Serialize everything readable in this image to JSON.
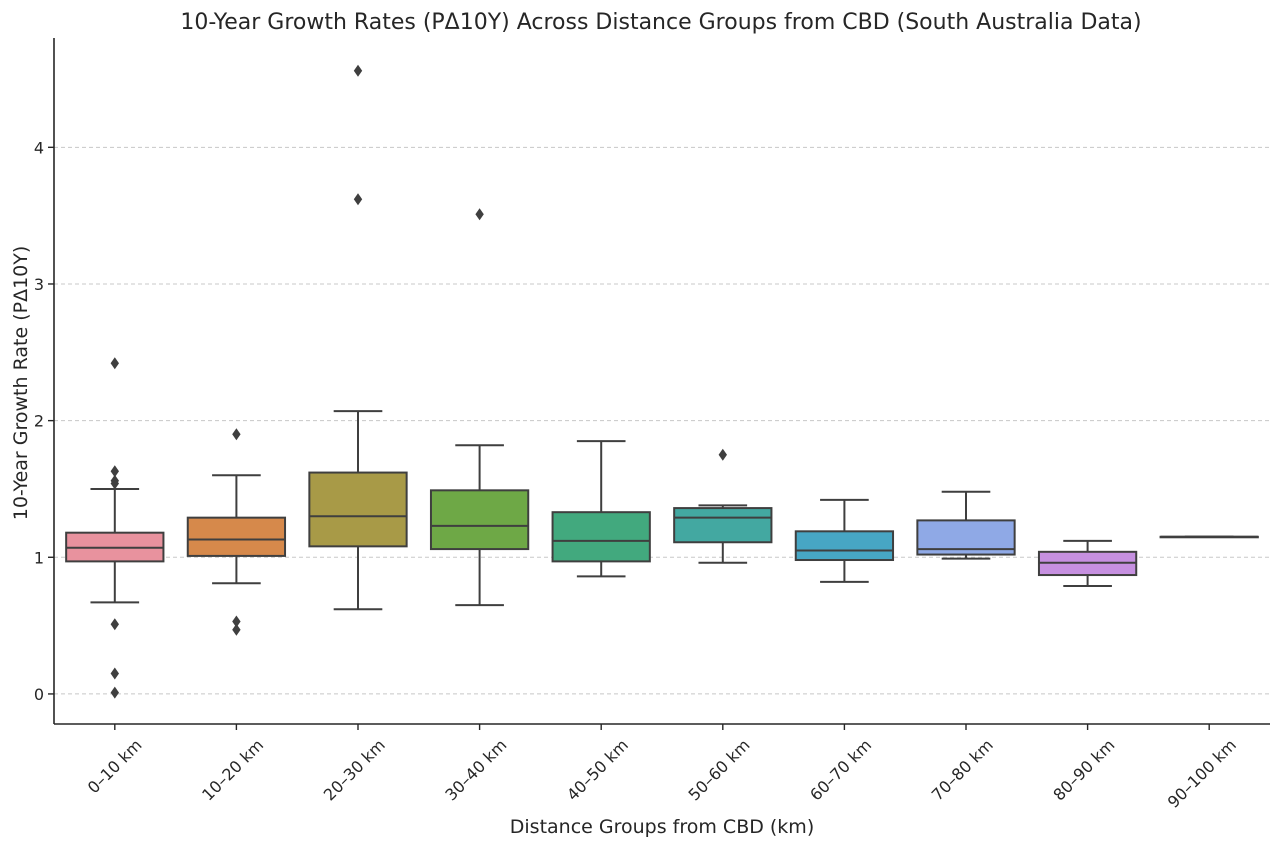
{
  "chart_data": {
    "type": "boxplot",
    "title": "10-Year Growth Rates (PΔ10Y) Across Distance Groups from CBD (South Australia Data)",
    "xlabel": "Distance Groups from CBD (km)",
    "ylabel": "10-Year Growth Rate (PΔ10Y)",
    "ylim": [
      -0.22,
      4.8
    ],
    "yticks": [
      0,
      1,
      2,
      3,
      4
    ],
    "grid": "horizontal dashed",
    "categories": [
      "0–10 km",
      "10–20 km",
      "20–30 km",
      "30–40 km",
      "40–50 km",
      "50–60 km",
      "60–70 km",
      "70–80 km",
      "80–90 km",
      "90–100 km"
    ],
    "boxes": [
      {
        "whisker_low": 0.67,
        "q1": 0.97,
        "median": 1.07,
        "q3": 1.18,
        "whisker_high": 1.5,
        "outliers": [
          2.42,
          1.63,
          1.56,
          1.54,
          0.51,
          0.15,
          0.01
        ],
        "color": "#e8929e"
      },
      {
        "whisker_low": 0.81,
        "q1": 1.01,
        "median": 1.13,
        "q3": 1.29,
        "whisker_high": 1.6,
        "outliers": [
          1.9,
          0.53,
          0.47
        ],
        "color": "#d6894b"
      },
      {
        "whisker_low": 0.62,
        "q1": 1.08,
        "median": 1.3,
        "q3": 1.62,
        "whisker_high": 2.07,
        "outliers": [
          4.56,
          3.62
        ],
        "color": "#a89a47"
      },
      {
        "whisker_low": 0.65,
        "q1": 1.06,
        "median": 1.23,
        "q3": 1.49,
        "whisker_high": 1.82,
        "outliers": [
          3.51
        ],
        "color": "#6ea846"
      },
      {
        "whisker_low": 0.86,
        "q1": 0.97,
        "median": 1.12,
        "q3": 1.33,
        "whisker_high": 1.85,
        "outliers": [],
        "color": "#42a97e"
      },
      {
        "whisker_low": 0.96,
        "q1": 1.11,
        "median": 1.29,
        "q3": 1.36,
        "whisker_high": 1.38,
        "outliers": [
          1.75
        ],
        "color": "#43a8a1"
      },
      {
        "whisker_low": 0.82,
        "q1": 0.98,
        "median": 1.05,
        "q3": 1.19,
        "whisker_high": 1.42,
        "outliers": [],
        "color": "#47a6c4"
      },
      {
        "whisker_low": 0.99,
        "q1": 1.02,
        "median": 1.06,
        "q3": 1.27,
        "whisker_high": 1.48,
        "outliers": [],
        "color": "#8fa9e6"
      },
      {
        "whisker_low": 0.79,
        "q1": 0.87,
        "median": 0.96,
        "q3": 1.04,
        "whisker_high": 1.12,
        "outliers": [],
        "color": "#c690e0"
      },
      {
        "whisker_low": 1.15,
        "q1": 1.15,
        "median": 1.15,
        "q3": 1.15,
        "whisker_high": 1.15,
        "outliers": [],
        "color": "#e48fc8"
      }
    ]
  }
}
